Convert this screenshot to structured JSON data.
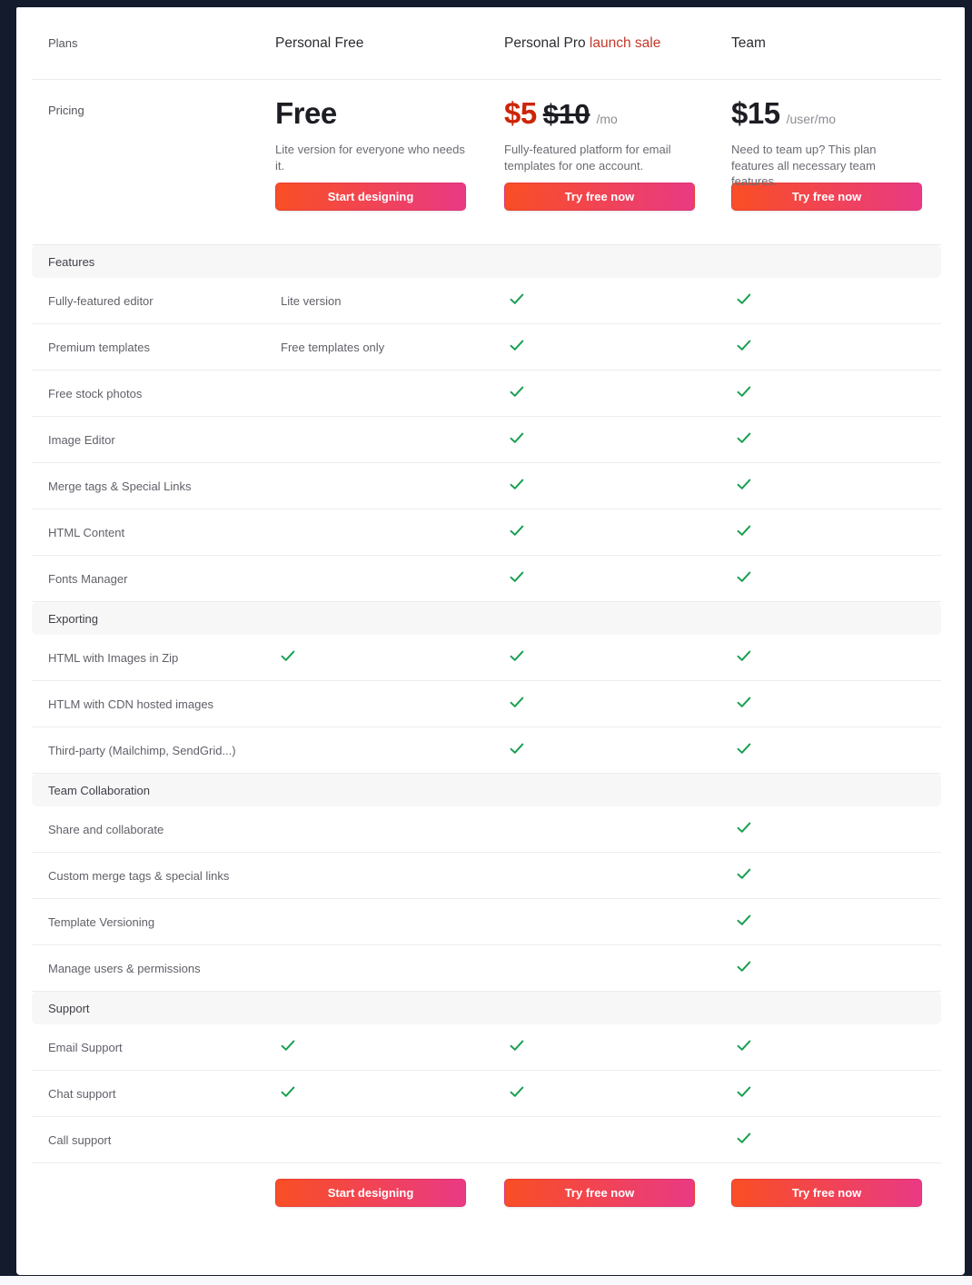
{
  "colors": {
    "frame_navy": "#141b2d",
    "check_green": "#18a050",
    "sale_red": "#c1392b",
    "price_red": "#cc2508",
    "button_gradient_start": "#f94e24",
    "button_gradient_end": "#e93a84"
  },
  "header": {
    "plans_label": "Plans",
    "columns": [
      {
        "name": "Personal Free",
        "badge": ""
      },
      {
        "name": "Personal Pro",
        "badge": "launch sale"
      },
      {
        "name": "Team",
        "badge": ""
      }
    ]
  },
  "pricing": {
    "label": "Pricing",
    "plans": [
      {
        "price": "Free",
        "old_price": "",
        "period": "",
        "description": "Lite version for everyone who needs it.",
        "button": "Start designing"
      },
      {
        "price": "$5",
        "old_price": "$10",
        "period": "/mo",
        "description": "Fully-featured platform for email templates for one account.",
        "button": "Try free now"
      },
      {
        "price": "$15",
        "old_price": "",
        "period": "/user/mo",
        "description": "Need to team up? This plan features all necessary team features.",
        "button": "Try free now"
      }
    ]
  },
  "sections": [
    {
      "title": "Features",
      "rows": [
        {
          "label": "Fully-featured editor",
          "cells": [
            "Lite version",
            "check",
            "check"
          ]
        },
        {
          "label": "Premium templates",
          "cells": [
            "Free templates only",
            "check",
            "check"
          ]
        },
        {
          "label": "Free stock photos",
          "cells": [
            "",
            "check",
            "check"
          ]
        },
        {
          "label": "Image Editor",
          "cells": [
            "",
            "check",
            "check"
          ]
        },
        {
          "label": "Merge tags & Special Links",
          "cells": [
            "",
            "check",
            "check"
          ]
        },
        {
          "label": "HTML Content",
          "cells": [
            "",
            "check",
            "check"
          ]
        },
        {
          "label": "Fonts Manager",
          "cells": [
            "",
            "check",
            "check"
          ]
        }
      ]
    },
    {
      "title": "Exporting",
      "rows": [
        {
          "label": "HTML with Images in Zip",
          "cells": [
            "check",
            "check",
            "check"
          ]
        },
        {
          "label": "HTLM with CDN hosted images",
          "cells": [
            "",
            "check",
            "check"
          ]
        },
        {
          "label": "Third-party (Mailchimp, SendGrid...)",
          "cells": [
            "",
            "check",
            "check"
          ]
        }
      ]
    },
    {
      "title": "Team Collaboration",
      "rows": [
        {
          "label": "Share and collaborate",
          "cells": [
            "",
            "",
            "check"
          ]
        },
        {
          "label": "Custom merge tags & special links",
          "cells": [
            "",
            "",
            "check"
          ]
        },
        {
          "label": "Template Versioning",
          "cells": [
            "",
            "",
            "check"
          ]
        },
        {
          "label": "Manage users & permissions",
          "cells": [
            "",
            "",
            "check"
          ]
        }
      ]
    },
    {
      "title": "Support",
      "rows": [
        {
          "label": "Email Support",
          "cells": [
            "check",
            "check",
            "check"
          ]
        },
        {
          "label": "Chat support",
          "cells": [
            "check",
            "check",
            "check"
          ]
        },
        {
          "label": "Call support",
          "cells": [
            "",
            "",
            "check"
          ]
        }
      ]
    }
  ],
  "footer": {
    "buttons": [
      "Start designing",
      "Try free now",
      "Try free now"
    ]
  }
}
